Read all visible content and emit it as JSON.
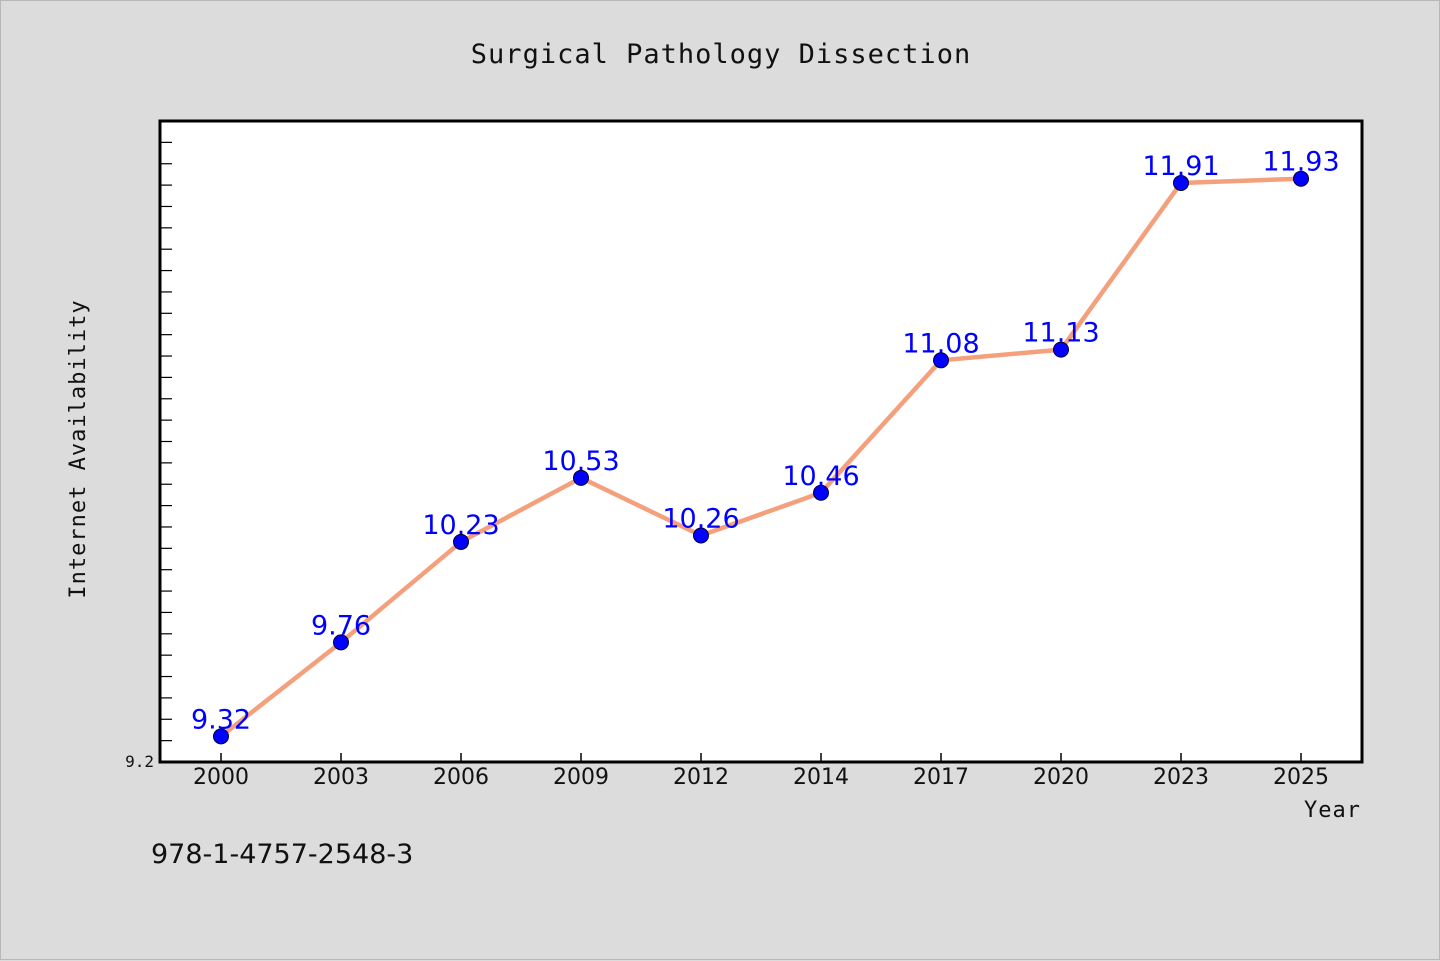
{
  "chart_data": {
    "type": "line",
    "title": "Surgical Pathology Dissection",
    "xlabel": "Year",
    "ylabel": "Internet Availability",
    "categories": [
      "2000",
      "2003",
      "2006",
      "2009",
      "2012",
      "2014",
      "2017",
      "2020",
      "2023",
      "2025"
    ],
    "series": [
      {
        "values": [
          9.32,
          9.76,
          10.23,
          10.53,
          10.26,
          10.46,
          11.08,
          11.13,
          11.91,
          11.93
        ],
        "labels": [
          "9.32",
          "9.76",
          "10.23",
          "10.53",
          "10.26",
          "10.46",
          "11.08",
          "11.13",
          "11.91",
          "11.93"
        ]
      }
    ],
    "y_tick_labels": [
      "9.2"
    ],
    "ylim": [
      9.2,
      12.2
    ],
    "minor_tick_step": 0.1,
    "grid": false,
    "legend": "none",
    "line_color": "#f4a07c",
    "marker_color": "#0000ff",
    "label_color": "#0000ff"
  },
  "footer": {
    "isbn": "978-1-4757-2548-3"
  }
}
